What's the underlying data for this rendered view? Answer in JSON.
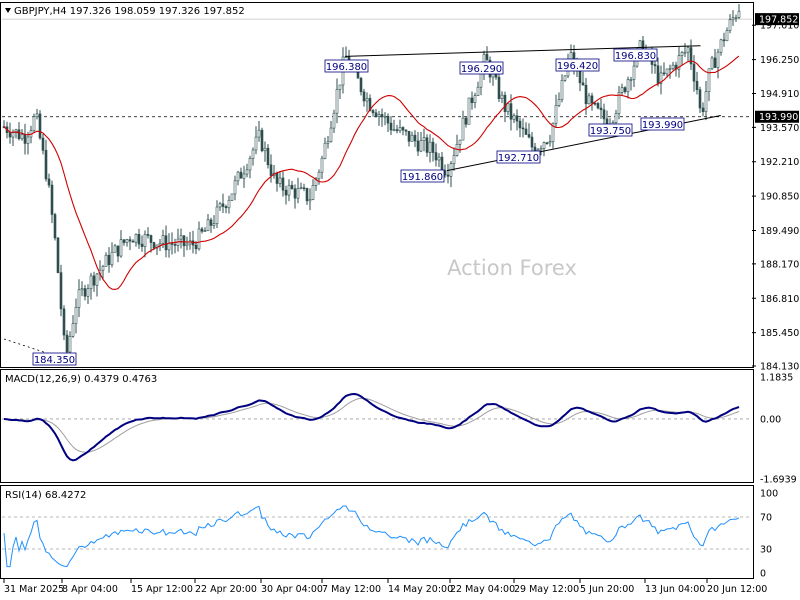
{
  "header": {
    "symbol_line": "GBPJPY,H4  197.326 198.059 197.326 197.852",
    "macd_label": "MACD(12,26,9) 0.4379 0.4763",
    "rsi_label": "RSI(14) 68.4272",
    "watermark": "Action Forex"
  },
  "colors": {
    "candles": "#2f4f4f",
    "ma": "#d00000",
    "macd_line": "#000080",
    "macd_signal": "#a0a0a0",
    "rsi": "#1e90ff",
    "grid_dashes": "#a0a0a0"
  },
  "chart_data": [
    {
      "type": "candlestick",
      "panel": "price",
      "title": "GBPJPY,H4",
      "ohlc_last": {
        "open": 197.326,
        "high": 198.059,
        "low": 197.326,
        "close": 197.852
      },
      "ylim": [
        184.13,
        198.45
      ],
      "yticks": [
        197.61,
        196.25,
        194.91,
        193.57,
        192.21,
        190.85,
        189.49,
        188.17,
        186.81,
        185.45,
        184.13
      ],
      "current_price": 197.852,
      "reference_line": 193.99,
      "x_ticks": [
        "31 Mar 2025",
        "8 Apr 04:00",
        "15 Apr 12:00",
        "22 Apr 20:00",
        "30 Apr 04:00",
        "7 May 12:00",
        "14 May 20:00",
        "22 May 04:00",
        "29 May 12:00",
        "5 Jun 20:00",
        "13 Jun 04:00",
        "20 Jun 12:00"
      ],
      "price_path": [
        {
          "x": "31 Mar 2025",
          "y": 193.6
        },
        {
          "x": "2 Apr",
          "y": 193.2
        },
        {
          "x": "3 Apr",
          "y": 194.0
        },
        {
          "x": "4 Apr",
          "y": 191.5
        },
        {
          "x": "6 Apr",
          "y": 188.7
        },
        {
          "x": "7 Apr",
          "y": 186.8
        },
        {
          "x": "8 Apr 04:00",
          "y": 184.35
        },
        {
          "x": "9 Apr",
          "y": 186.6
        },
        {
          "x": "10 Apr",
          "y": 187.3
        },
        {
          "x": "14 Apr",
          "y": 188.6
        },
        {
          "x": "15 Apr 12:00",
          "y": 189.3
        },
        {
          "x": "18 Apr",
          "y": 189.0
        },
        {
          "x": "22 Apr 20:00",
          "y": 188.9
        },
        {
          "x": "24 Apr",
          "y": 189.6
        },
        {
          "x": "28 Apr",
          "y": 191.0
        },
        {
          "x": "30 Apr 04:00",
          "y": 193.2
        },
        {
          "x": "1 May",
          "y": 191.3
        },
        {
          "x": "5 May",
          "y": 190.8
        },
        {
          "x": "7 May 12:00",
          "y": 192.3
        },
        {
          "x": "9 May",
          "y": 196.38
        },
        {
          "x": "12 May",
          "y": 194.6
        },
        {
          "x": "14 May 20:00",
          "y": 193.5
        },
        {
          "x": "19 May",
          "y": 192.6
        },
        {
          "x": "21 May",
          "y": 191.86
        },
        {
          "x": "22 May 04:00",
          "y": 192.9
        },
        {
          "x": "26 May",
          "y": 196.29
        },
        {
          "x": "27 May",
          "y": 194.4
        },
        {
          "x": "29 May 12:00",
          "y": 192.71
        },
        {
          "x": "30 May",
          "y": 193.3
        },
        {
          "x": "3 Jun",
          "y": 196.42
        },
        {
          "x": "4 Jun",
          "y": 194.4
        },
        {
          "x": "5 Jun 20:00",
          "y": 193.75
        },
        {
          "x": "9 Jun",
          "y": 196.83
        },
        {
          "x": "11 Jun",
          "y": 195.4
        },
        {
          "x": "13 Jun 04:00",
          "y": 196.7
        },
        {
          "x": "16 Jun",
          "y": 195.0
        },
        {
          "x": "17 Jun",
          "y": 193.99
        },
        {
          "x": "18 Jun",
          "y": 195.8
        },
        {
          "x": "20 Jun 12:00",
          "y": 197.3
        },
        {
          "x": "23 Jun",
          "y": 198.5
        },
        {
          "x": "24 Jun",
          "y": 197.852
        }
      ],
      "annotations": [
        "184.350",
        "196.380",
        "191.860",
        "196.290",
        "192.710",
        "196.420",
        "196.830",
        "193.750",
        "193.990"
      ],
      "trendlines": [
        {
          "name": "upper",
          "from": {
            "x": "9 May",
            "y": 196.38
          },
          "to": {
            "x": "11 Jun",
            "y": 196.83
          }
        },
        {
          "name": "lower",
          "from": {
            "x": "21 May",
            "y": 191.86
          },
          "to": {
            "x": "17 Jun",
            "y": 193.99
          }
        }
      ]
    },
    {
      "type": "line",
      "panel": "macd",
      "title": "MACD(12,26,9)",
      "current": {
        "macd": 0.4379,
        "signal": 0.4763
      },
      "ylim": [
        -1.6939,
        1.1835
      ],
      "yticks": [
        1.1835,
        0.0,
        -1.6939
      ]
    },
    {
      "type": "line",
      "panel": "rsi",
      "title": "RSI(14)",
      "current": 68.4272,
      "ylim": [
        0,
        100
      ],
      "yticks": [
        100,
        70,
        30,
        0
      ],
      "levels": [
        70,
        30
      ]
    }
  ],
  "labels": {
    "price_ticks": [
      "197.610",
      "196.250",
      "194.910",
      "193.570",
      "192.210",
      "190.850",
      "189.490",
      "188.170",
      "186.810",
      "185.450",
      "184.130"
    ],
    "current_price_tag": "197.852",
    "reference_tag": "193.990",
    "macd_ticks": [
      "1.1835",
      "0.00",
      "-1.6939"
    ],
    "rsi_ticks": [
      "100",
      "70",
      "30",
      "0"
    ],
    "time_ticks": [
      "31 Mar 2025",
      "8 Apr 04:00",
      "15 Apr 12:00",
      "22 Apr 20:00",
      "30 Apr 04:00",
      "7 May 12:00",
      "14 May 20:00",
      "22 May 04:00",
      "29 May 12:00",
      "5 Jun 20:00",
      "13 Jun 04:00",
      "20 Jun 12:00"
    ],
    "boxes": [
      "184.350",
      "196.380",
      "191.860",
      "196.290",
      "192.710",
      "196.420",
      "196.830",
      "193.750",
      "193.990"
    ]
  }
}
